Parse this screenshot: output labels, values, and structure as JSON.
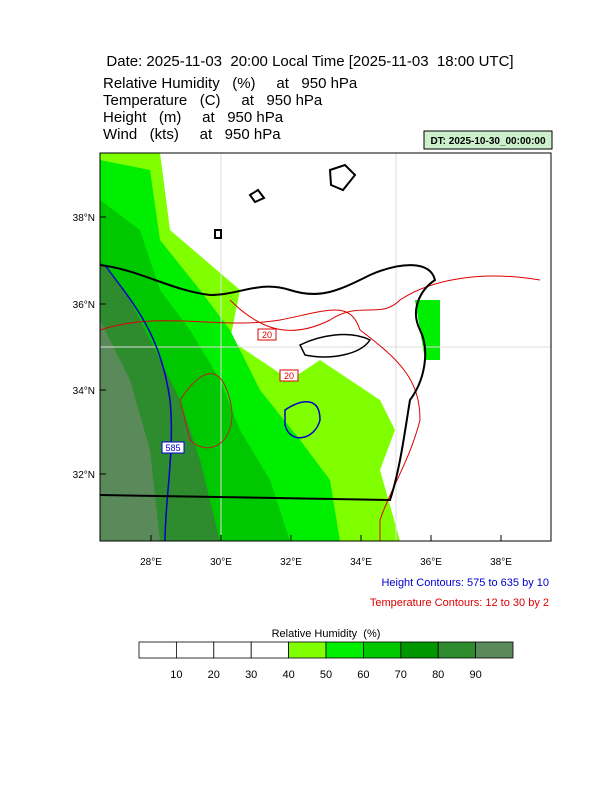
{
  "header": {
    "title": "Date: 2025-11-03  20:00 Local Time [2025-11-03  18:00 UTC]",
    "fields": [
      "Relative Humidity   (%)     at   950 hPa",
      "Temperature   (C)     at   950 hPa",
      "Height   (m)     at   950 hPa",
      "Wind   (kts)     at   950 hPa"
    ],
    "dt": "DT: 2025-10-30_00:00:00"
  },
  "map": {
    "lat_labels": [
      "38°N",
      "36°N",
      "34°N",
      "32°N"
    ],
    "lon_labels": [
      "28°E",
      "30°E",
      "32°E",
      "34°E",
      "36°E",
      "38°E"
    ],
    "contour_labels": [
      "20",
      "20",
      "585"
    ]
  },
  "notes": {
    "height": "Height Contours: 575 to 635 by 10",
    "temperature": "Temperature Contours: 12 to 30 by 2"
  },
  "colorbar": {
    "title": "Relative Humidity  (%)",
    "labels": [
      "10",
      "20",
      "30",
      "40",
      "50",
      "60",
      "70",
      "80",
      "90"
    ],
    "colors": [
      "#ffffff",
      "#ffffff",
      "#ffffff",
      "#ffffff",
      "#80ff00",
      "#00ee00",
      "#00c800",
      "#009600",
      "#2e8b2e",
      "#5a8a5a"
    ]
  }
}
